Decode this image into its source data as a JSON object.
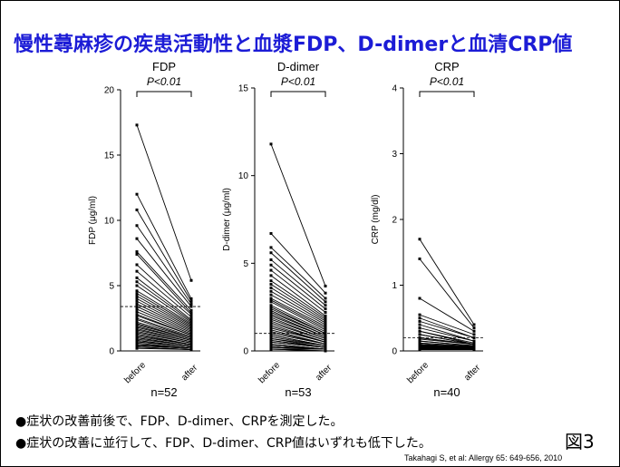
{
  "slide": {
    "title": "慢性蕁麻疹の疾患活動性と血漿FDP、D-dimerと血清CRP値",
    "bullets": [
      "●症状の改善前後で、FDP、D-dimer、CRPを測定した。",
      "●症状の改善に並行して、FDP、D-dimer、CRP値はいずれも低下した。"
    ],
    "figure_label": "図3",
    "citation": "Takahagi S, et al: Allergy 65: 649-656, 2010"
  },
  "chart_data": [
    {
      "type": "line",
      "title": "FDP",
      "subtitle": "P<0.01",
      "ylabel": "FDP (μg/ml)",
      "ylim": [
        0,
        20
      ],
      "yticks": [
        0,
        5,
        10,
        15,
        20
      ],
      "categories": [
        "before",
        "after"
      ],
      "n_label": "n=52",
      "cutoff": 3.4,
      "pairs": [
        [
          17.3,
          5.4
        ],
        [
          12.0,
          4.0
        ],
        [
          10.8,
          3.8
        ],
        [
          9.6,
          3.6
        ],
        [
          8.6,
          3.4
        ],
        [
          7.6,
          3.1
        ],
        [
          7.4,
          2.9
        ],
        [
          6.6,
          2.8
        ],
        [
          6.1,
          2.6
        ],
        [
          5.6,
          2.4
        ],
        [
          5.3,
          2.3
        ],
        [
          5.0,
          2.2
        ],
        [
          4.6,
          2.1
        ],
        [
          4.4,
          2.0
        ],
        [
          4.2,
          1.9
        ],
        [
          4.0,
          1.8
        ],
        [
          3.8,
          1.7
        ],
        [
          3.6,
          1.6
        ],
        [
          3.4,
          1.5
        ],
        [
          3.2,
          1.4
        ],
        [
          3.0,
          1.3
        ],
        [
          2.8,
          1.2
        ],
        [
          2.7,
          1.2
        ],
        [
          2.5,
          1.1
        ],
        [
          2.4,
          1.0
        ],
        [
          2.2,
          1.0
        ],
        [
          2.1,
          0.9
        ],
        [
          2.0,
          0.9
        ],
        [
          1.9,
          0.8
        ],
        [
          1.8,
          0.8
        ],
        [
          1.7,
          0.7
        ],
        [
          1.6,
          0.7
        ],
        [
          1.5,
          0.6
        ],
        [
          1.4,
          0.6
        ],
        [
          1.3,
          0.5
        ],
        [
          1.2,
          0.5
        ],
        [
          1.1,
          0.5
        ],
        [
          1.0,
          0.4
        ],
        [
          1.0,
          0.4
        ],
        [
          0.9,
          0.4
        ],
        [
          0.8,
          0.3
        ],
        [
          0.8,
          0.3
        ],
        [
          0.7,
          0.3
        ],
        [
          0.7,
          0.3
        ],
        [
          0.6,
          0.2
        ],
        [
          0.5,
          0.2
        ],
        [
          0.5,
          0.2
        ],
        [
          0.4,
          0.2
        ],
        [
          0.4,
          0.2
        ],
        [
          0.3,
          0.1
        ],
        [
          0.3,
          0.1
        ],
        [
          0.2,
          0.1
        ]
      ]
    },
    {
      "type": "line",
      "title": "D-dimer",
      "subtitle": "P<0.01",
      "ylabel": "D-dimer (μg/ml)",
      "ylim": [
        0,
        15
      ],
      "yticks": [
        0,
        5,
        10,
        15
      ],
      "categories": [
        "before",
        "after"
      ],
      "n_label": "n=53",
      "cutoff": 1.0,
      "pairs": [
        [
          11.8,
          3.7
        ],
        [
          6.7,
          3.3
        ],
        [
          5.9,
          3.0
        ],
        [
          5.6,
          2.8
        ],
        [
          5.2,
          2.6
        ],
        [
          4.9,
          2.4
        ],
        [
          4.6,
          2.2
        ],
        [
          4.3,
          2.0
        ],
        [
          4.0,
          1.9
        ],
        [
          3.8,
          1.8
        ],
        [
          3.6,
          1.7
        ],
        [
          3.4,
          1.6
        ],
        [
          3.2,
          1.5
        ],
        [
          3.0,
          1.4
        ],
        [
          2.9,
          1.3
        ],
        [
          2.8,
          1.2
        ],
        [
          2.6,
          1.1
        ],
        [
          2.5,
          1.0
        ],
        [
          2.4,
          1.0
        ],
        [
          2.3,
          0.9
        ],
        [
          2.2,
          0.9
        ],
        [
          2.1,
          0.8
        ],
        [
          2.0,
          0.8
        ],
        [
          1.9,
          0.7
        ],
        [
          1.8,
          0.7
        ],
        [
          1.7,
          0.6
        ],
        [
          1.6,
          0.6
        ],
        [
          1.5,
          0.5
        ],
        [
          1.4,
          0.5
        ],
        [
          1.3,
          0.5
        ],
        [
          1.2,
          0.4
        ],
        [
          1.1,
          0.4
        ],
        [
          1.0,
          0.4
        ],
        [
          0.9,
          0.3
        ],
        [
          0.9,
          0.3
        ],
        [
          0.8,
          0.3
        ],
        [
          0.7,
          0.3
        ],
        [
          0.7,
          0.2
        ],
        [
          0.6,
          0.2
        ],
        [
          0.6,
          0.2
        ],
        [
          0.5,
          0.2
        ],
        [
          0.5,
          0.2
        ],
        [
          0.4,
          0.1
        ],
        [
          0.4,
          0.1
        ],
        [
          0.3,
          0.1
        ],
        [
          0.3,
          0.1
        ],
        [
          0.3,
          0.1
        ],
        [
          0.2,
          0.1
        ],
        [
          0.2,
          0.1
        ],
        [
          0.2,
          0.1
        ],
        [
          0.1,
          0.1
        ],
        [
          0.1,
          0.0
        ],
        [
          0.1,
          0.0
        ]
      ]
    },
    {
      "type": "line",
      "title": "CRP",
      "subtitle": "P<0.01",
      "ylabel": "CRP (mg/dl)",
      "ylim": [
        0,
        4
      ],
      "yticks": [
        0,
        1,
        2,
        3,
        4
      ],
      "categories": [
        "before",
        "after"
      ],
      "n_label": "n=40",
      "cutoff": 0.2,
      "pairs": [
        [
          1.7,
          0.4
        ],
        [
          1.4,
          0.35
        ],
        [
          0.8,
          0.3
        ],
        [
          0.55,
          0.25
        ],
        [
          0.5,
          0.2
        ],
        [
          0.45,
          0.2
        ],
        [
          0.4,
          0.15
        ],
        [
          0.35,
          0.15
        ],
        [
          0.3,
          0.12
        ],
        [
          0.3,
          0.1
        ],
        [
          0.25,
          0.1
        ],
        [
          0.25,
          0.1
        ],
        [
          0.2,
          0.1
        ],
        [
          0.2,
          0.1
        ],
        [
          0.18,
          0.1
        ],
        [
          0.15,
          0.08
        ],
        [
          0.15,
          0.08
        ],
        [
          0.12,
          0.07
        ],
        [
          0.12,
          0.07
        ],
        [
          0.1,
          0.06
        ],
        [
          0.1,
          0.06
        ],
        [
          0.1,
          0.05
        ],
        [
          0.09,
          0.05
        ],
        [
          0.09,
          0.05
        ],
        [
          0.08,
          0.05
        ],
        [
          0.08,
          0.05
        ],
        [
          0.07,
          0.04
        ],
        [
          0.07,
          0.04
        ],
        [
          0.06,
          0.04
        ],
        [
          0.06,
          0.04
        ],
        [
          0.05,
          0.04
        ],
        [
          0.05,
          0.03
        ],
        [
          0.05,
          0.03
        ],
        [
          0.04,
          0.03
        ],
        [
          0.04,
          0.03
        ],
        [
          0.04,
          0.03
        ],
        [
          0.03,
          0.03
        ],
        [
          0.03,
          0.02
        ],
        [
          0.03,
          0.02
        ],
        [
          0.02,
          0.02
        ]
      ]
    }
  ]
}
